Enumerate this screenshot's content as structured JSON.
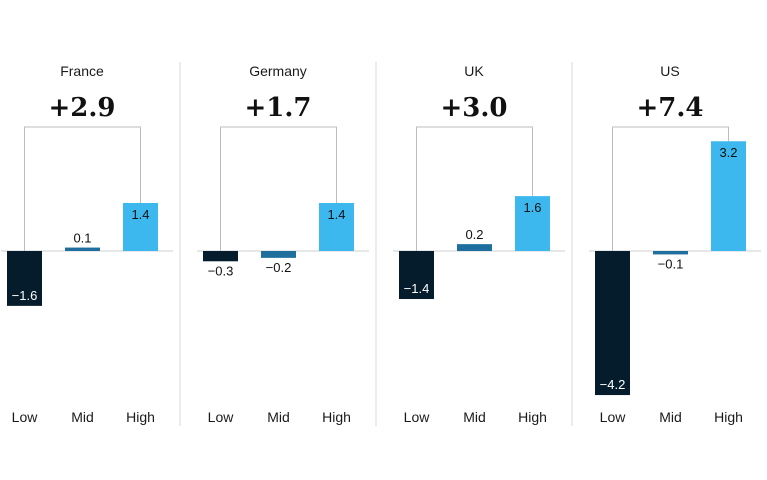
{
  "chart_data": {
    "type": "bar",
    "categories": [
      "Low",
      "Mid",
      "High"
    ],
    "colors": {
      "Low": "#051c2c",
      "Mid": "#1f6f9e",
      "High": "#3db8ee"
    },
    "panels": [
      {
        "title": "France",
        "gap": "+2.9",
        "values": [
          -1.6,
          0.1,
          1.4
        ],
        "labels": [
          "−1.6",
          "0.1",
          "1.4"
        ]
      },
      {
        "title": "Germany",
        "gap": "+1.7",
        "values": [
          -0.3,
          -0.2,
          1.4
        ],
        "labels": [
          "−0.3",
          "−0.2",
          "1.4"
        ]
      },
      {
        "title": "UK",
        "gap": "+3.0",
        "values": [
          -1.4,
          0.2,
          1.6
        ],
        "labels": [
          "−1.4",
          "0.2",
          "1.6"
        ]
      },
      {
        "title": "US",
        "gap": "+7.4",
        "values": [
          -4.2,
          -0.1,
          3.2
        ],
        "labels": [
          "−4.2",
          "−0.1",
          "3.2"
        ]
      }
    ],
    "grid": false,
    "legend": "none"
  }
}
